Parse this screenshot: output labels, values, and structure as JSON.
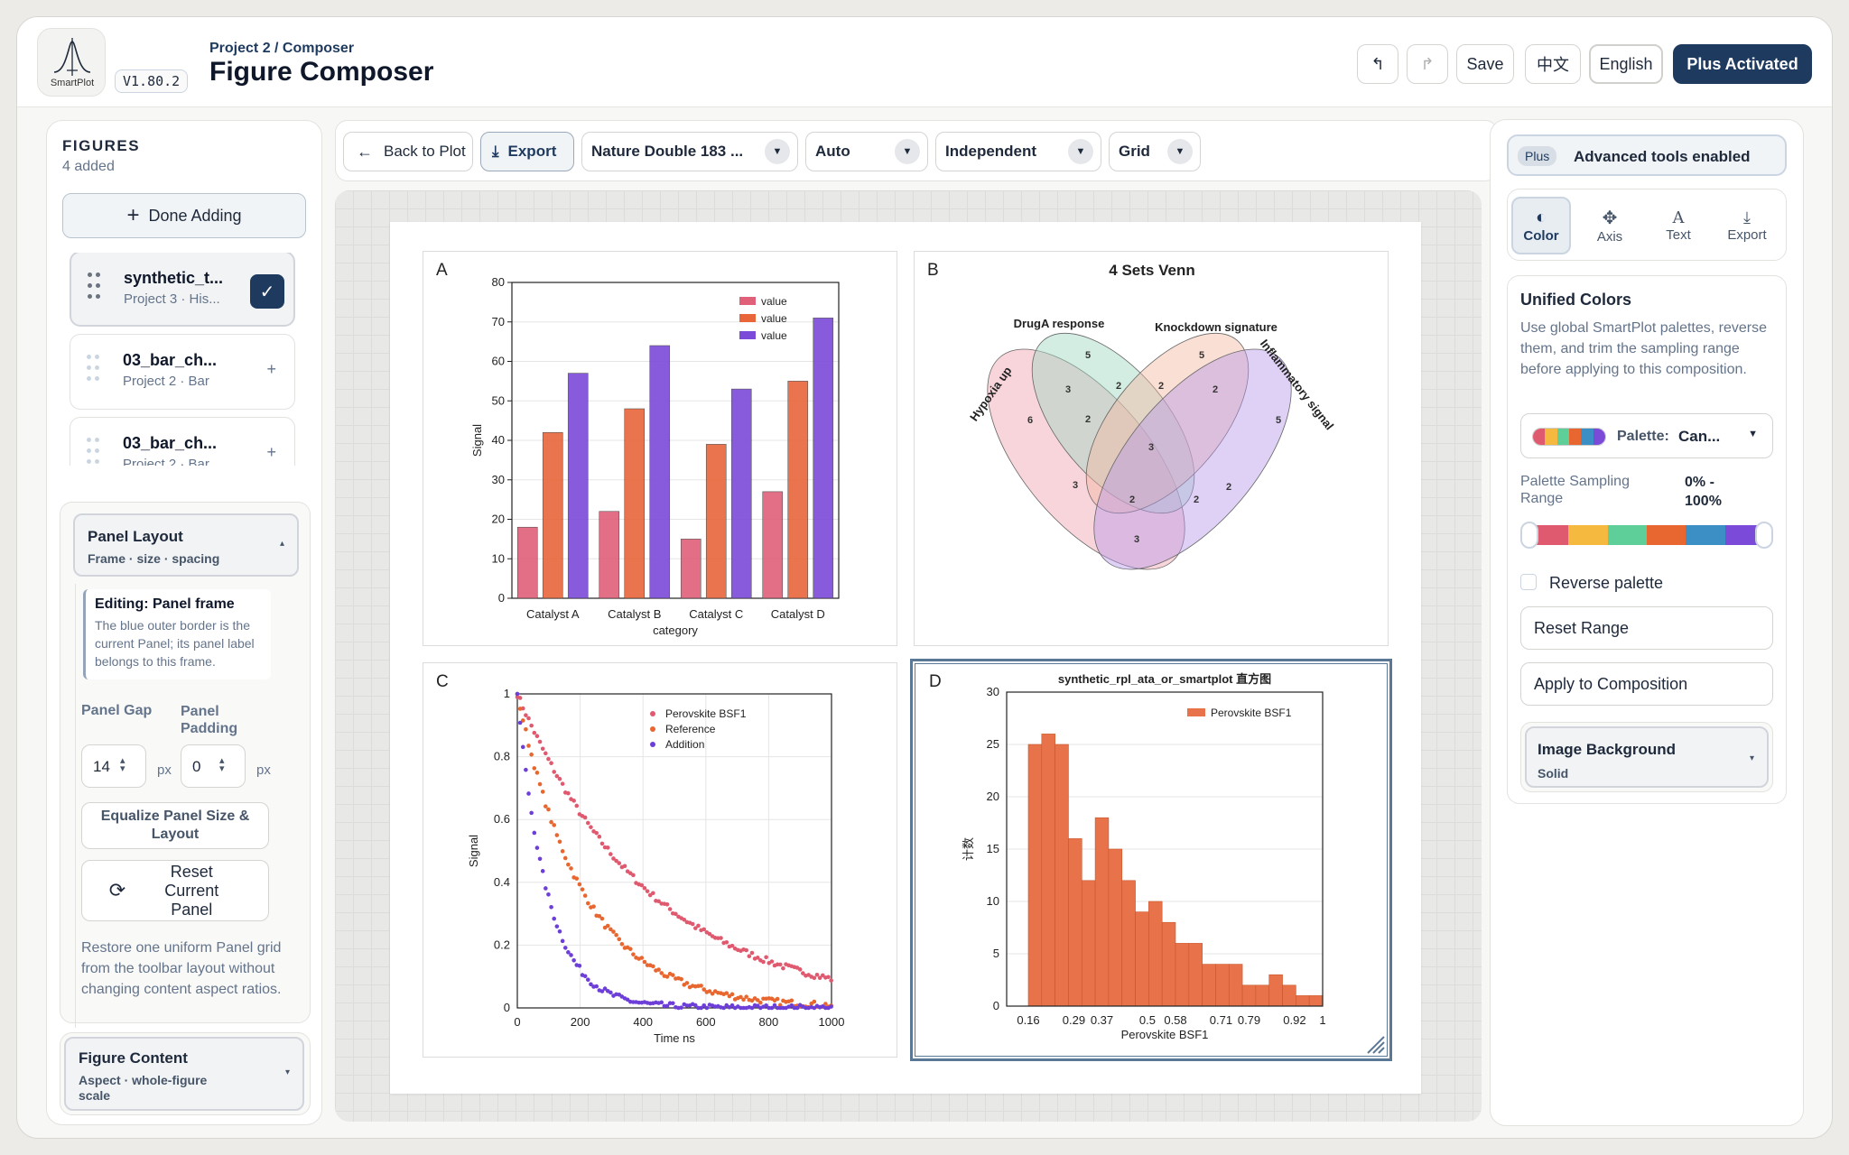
{
  "header": {
    "logo_text": "SmartPlot",
    "version": "V1.80.2",
    "breadcrumb": "Project 2 / Composer",
    "title": "Figure Composer",
    "undo_icon": "undo-icon",
    "redo_icon": "redo-icon",
    "save": "Save",
    "lang_zh": "中文",
    "lang_en": "English",
    "plus": "Plus Activated"
  },
  "sidebar": {
    "title": "FIGURES",
    "count": "4 added",
    "done_adding": "Done Adding",
    "figures": [
      {
        "name": "synthetic_t...",
        "sub": "Project 3 · His...",
        "selected": true
      },
      {
        "name": "03_bar_ch...",
        "sub": "Project 2 · Bar",
        "selected": false
      },
      {
        "name": "03_bar_ch...",
        "sub": "Project 2 · Bar",
        "selected": false
      }
    ],
    "panel_layout": {
      "title": "Panel Layout",
      "sub": "Frame · size · spacing",
      "editing_title": "Editing: Panel frame",
      "editing_desc": "The blue outer border is the current Panel; its panel label belongs to this frame.",
      "gap_label": "Panel Gap",
      "padding_label": "Panel Padding",
      "gap_value": "14",
      "padding_value": "0",
      "unit": "px",
      "equalize": "Equalize Panel Size & Layout",
      "reset": "Reset Current Panel",
      "reset_desc": "Restore one uniform Panel grid from the toolbar layout without changing content aspect ratios."
    },
    "figure_content": {
      "title": "Figure Content",
      "sub": "Aspect · whole-figure scale"
    }
  },
  "toolbar": {
    "back": "Back to Plot",
    "export": "Export",
    "size": "Nature Double 183 ...",
    "auto": "Auto",
    "independent": "Independent",
    "grid": "Grid"
  },
  "right": {
    "plus_badge": "Plus",
    "plus_text": "Advanced tools enabled",
    "tools": [
      "Color",
      "Axis",
      "Text",
      "Export"
    ],
    "unified_title": "Unified Colors",
    "unified_desc": "Use global SmartPlot palettes, reverse them, and trim the sampling range before applying to this composition.",
    "palette_label": "Palette:",
    "palette_value": "Can...",
    "sampling_label": "Palette Sampling Range",
    "sampling_value": "0% - 100%",
    "reverse": "Reverse palette",
    "reset_range": "Reset Range",
    "apply": "Apply to Composition",
    "bg_title": "Image Background",
    "bg_value": "Solid",
    "palette_colors": [
      "#e05a6f",
      "#f4b93e",
      "#5fcf9a",
      "#e8662f",
      "#3b8fc4",
      "#7c4ad9"
    ]
  },
  "chart_data": [
    {
      "panel": "A",
      "type": "bar",
      "categories": [
        "Catalyst A",
        "Catalyst B",
        "Catalyst C",
        "Catalyst D"
      ],
      "series": [
        {
          "name": "value",
          "values": [
            18,
            22,
            15,
            27
          ],
          "color": "#e0607a"
        },
        {
          "name": "value",
          "values": [
            42,
            48,
            39,
            55
          ],
          "color": "#e8663a"
        },
        {
          "name": "value",
          "values": [
            57,
            64,
            53,
            71
          ],
          "color": "#7c4ad9"
        }
      ],
      "xlabel": "category",
      "ylabel": "Signal",
      "ylim": [
        0,
        80
      ],
      "yticks": [
        "0",
        "10",
        "20",
        "30",
        "40",
        "50",
        "60",
        "70",
        "80"
      ],
      "legend": "top-right"
    },
    {
      "panel": "B",
      "type": "venn",
      "title": "4 Sets Venn",
      "sets": [
        "Hypoxia up",
        "DrugA response",
        "Knockdown signature",
        "Inflammatory signal"
      ],
      "regions": [
        "6",
        "5",
        "5",
        "5",
        "3",
        "2",
        "2",
        "2",
        "2",
        "3",
        "3",
        "2",
        "2",
        "2",
        "3"
      ]
    },
    {
      "panel": "C",
      "type": "scatter",
      "xlabel": "Time ns",
      "ylabel": "Signal",
      "xlim": [
        0,
        1000
      ],
      "ylim": [
        0,
        1
      ],
      "xticks": [
        "0",
        "200",
        "400",
        "600",
        "800",
        "1000"
      ],
      "yticks": [
        "0",
        "0.2",
        "0.4",
        "0.6",
        "0.8",
        "1"
      ],
      "series": [
        {
          "name": "Perovskite BSF1",
          "tau": 420,
          "color": "#e05a6f"
        },
        {
          "name": "Reference",
          "tau": 210,
          "color": "#e8662f"
        },
        {
          "name": "Addition",
          "tau": 95,
          "color": "#6d3fd8"
        }
      ],
      "legend": "top-right"
    },
    {
      "panel": "D",
      "type": "bar",
      "title": "synthetic_rpl_ata_or_smartplot 直方图",
      "xlabel": "Perovskite BSF1",
      "ylabel": "计数",
      "series_name": "Perovskite BSF1",
      "ylim": [
        0,
        30
      ],
      "yticks": [
        "0",
        "5",
        "10",
        "15",
        "20",
        "25",
        "30"
      ],
      "xticks": [
        "0.16",
        "0.29",
        "0.37",
        "0.5",
        "0.58",
        "0.71",
        "0.79",
        "0.92",
        "1"
      ],
      "values": [
        25,
        26,
        25,
        16,
        12,
        18,
        15,
        12,
        9,
        10,
        8,
        6,
        6,
        4,
        4,
        4,
        2,
        2,
        3,
        2,
        1,
        1
      ],
      "color": "#e8734a"
    }
  ]
}
